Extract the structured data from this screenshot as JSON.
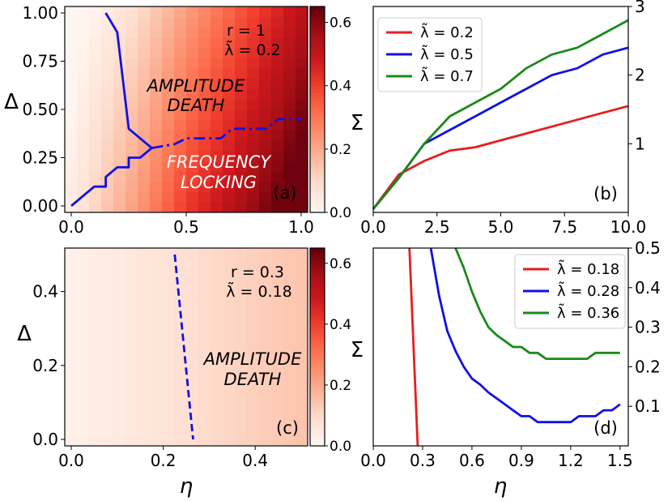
{
  "chart_data": [
    {
      "panel": "(a)",
      "type": "heatmap",
      "xlabel": "",
      "ylabel": "Δ",
      "xlim": [
        0,
        1
      ],
      "ylim": [
        0,
        1
      ],
      "xticks": [
        "0.0",
        "0.5",
        "1.0"
      ],
      "yticks": [
        "0.00",
        "0.25",
        "0.50",
        "0.75",
        "1.00"
      ],
      "grid_cells": 20,
      "colormap": "Reds",
      "colorbar": {
        "range": [
          0,
          0.65
        ],
        "ticks": [
          "0.0",
          "0.2",
          "0.4",
          "0.6"
        ]
      },
      "annotations": {
        "r_line": "r = 1",
        "lambda_line": "λ̃ = 0.2",
        "region1": [
          "AMPLITUDE",
          "DEATH"
        ],
        "region2": [
          "FREQUENCY",
          "LOCKING"
        ],
        "tag": "(a)"
      },
      "series": [
        {
          "style": "solid",
          "color": "#1010e6",
          "x": [
            0.15,
            0.2,
            0.25,
            0.35
          ],
          "y": [
            1.0,
            0.9,
            0.4,
            0.3
          ]
        },
        {
          "style": "solid",
          "color": "#1010e6",
          "x": [
            0,
            0.05,
            0.1,
            0.15,
            0.15,
            0.2,
            0.25,
            0.25,
            0.3,
            0.35,
            0.35
          ],
          "y": [
            0,
            0.05,
            0.1,
            0.1,
            0.15,
            0.2,
            0.2,
            0.25,
            0.25,
            0.3,
            0.3
          ]
        },
        {
          "style": "dashdot",
          "color": "#1010e6",
          "x": [
            0.35,
            0.45,
            0.5,
            0.55,
            0.6,
            0.65,
            0.7,
            0.75,
            0.8,
            0.85,
            0.9,
            0.95,
            1.0
          ],
          "y": [
            0.3,
            0.32,
            0.35,
            0.35,
            0.35,
            0.35,
            0.4,
            0.4,
            0.4,
            0.4,
            0.45,
            0.45,
            0.45
          ]
        }
      ]
    },
    {
      "panel": "(b)",
      "type": "line",
      "xlabel": "",
      "ylabel": "Σ",
      "xlim": [
        0,
        10
      ],
      "ylim": [
        0,
        3
      ],
      "xticks": [
        "0.0",
        "2.5",
        "5.0",
        "7.5",
        "10.0"
      ],
      "yticks": [
        "1",
        "2",
        "3"
      ],
      "legend": "top-left",
      "tag": "(b)",
      "series": [
        {
          "name": "λ̃ = 0.2",
          "color": "#e61e1e",
          "x": [
            0,
            1,
            2,
            3,
            4,
            5,
            6,
            7,
            8,
            9,
            10
          ],
          "y": [
            0.05,
            0.55,
            0.75,
            0.9,
            0.95,
            1.05,
            1.15,
            1.25,
            1.35,
            1.45,
            1.55
          ]
        },
        {
          "name": "λ̃ = 0.5",
          "color": "#1010e6",
          "x": [
            0,
            1,
            2,
            3,
            4,
            5,
            6,
            7,
            8,
            9,
            10
          ],
          "y": [
            0.05,
            0.5,
            1.0,
            1.2,
            1.4,
            1.6,
            1.8,
            2.0,
            2.1,
            2.3,
            2.4
          ]
        },
        {
          "name": "λ̃ = 0.7",
          "color": "#1a8a1a",
          "x": [
            0,
            1,
            2,
            3,
            4,
            5,
            6,
            7,
            8,
            9,
            10
          ],
          "y": [
            0.05,
            0.5,
            1.0,
            1.4,
            1.6,
            1.8,
            2.1,
            2.3,
            2.4,
            2.6,
            2.8
          ]
        }
      ]
    },
    {
      "panel": "(c)",
      "type": "heatmap",
      "xlabel": "η",
      "ylabel": "Δ",
      "xlim": [
        0,
        0.5
      ],
      "ylim": [
        0,
        0.5
      ],
      "xticks": [
        "0.0",
        "0.2",
        "0.4"
      ],
      "yticks": [
        "0.0",
        "0.2",
        "0.4"
      ],
      "grid_cells": 20,
      "colormap": "Reds",
      "colorbar": {
        "range": [
          0,
          0.65
        ],
        "ticks": [
          "0.0",
          "0.2",
          "0.4",
          "0.6"
        ]
      },
      "annotations": {
        "r_line": "r = 0.3",
        "lambda_line": "λ̃ = 0.18",
        "region1": [
          "AMPLITUDE",
          "DEATH"
        ],
        "tag": "(c)"
      },
      "series": [
        {
          "style": "dashed",
          "color": "#1010e6",
          "x": [
            0.225,
            0.265
          ],
          "y": [
            0.5,
            0.0
          ]
        }
      ]
    },
    {
      "panel": "(d)",
      "type": "line",
      "xlabel": "η",
      "ylabel": "Σ",
      "xlim": [
        0,
        1.55
      ],
      "ylim": [
        0,
        0.5
      ],
      "xticks": [
        "0.0",
        "0.3",
        "0.6",
        "0.9",
        "1.2",
        "1.5"
      ],
      "yticks": [
        "0.1",
        "0.2",
        "0.3",
        "0.4",
        "0.5"
      ],
      "legend": "top-right",
      "tag": "(d)",
      "series": [
        {
          "name": "λ̃ = 0.18",
          "color": "#e61e1e",
          "x": [
            0.22,
            0.27
          ],
          "y": [
            0.5,
            0.0
          ]
        },
        {
          "name": "λ̃ = 0.28",
          "color": "#1010e6",
          "x": [
            0.35,
            0.4,
            0.45,
            0.5,
            0.55,
            0.6,
            0.65,
            0.7,
            0.75,
            0.8,
            0.85,
            0.9,
            0.95,
            1.0,
            1.05,
            1.1,
            1.15,
            1.2,
            1.25,
            1.3,
            1.35,
            1.4,
            1.45,
            1.5
          ],
          "y": [
            0.5,
            0.38,
            0.29,
            0.24,
            0.2,
            0.17,
            0.155,
            0.135,
            0.12,
            0.105,
            0.09,
            0.075,
            0.075,
            0.06,
            0.06,
            0.06,
            0.06,
            0.06,
            0.075,
            0.075,
            0.075,
            0.09,
            0.09,
            0.105
          ]
        },
        {
          "name": "λ̃ = 0.36",
          "color": "#1a8a1a",
          "x": [
            0.5,
            0.55,
            0.6,
            0.65,
            0.7,
            0.75,
            0.8,
            0.85,
            0.9,
            0.95,
            1.0,
            1.05,
            1.1,
            1.15,
            1.2,
            1.25,
            1.3,
            1.35,
            1.4,
            1.45,
            1.5
          ],
          "y": [
            0.5,
            0.45,
            0.39,
            0.34,
            0.3,
            0.28,
            0.265,
            0.25,
            0.25,
            0.235,
            0.235,
            0.22,
            0.22,
            0.22,
            0.22,
            0.22,
            0.22,
            0.235,
            0.235,
            0.235,
            0.235
          ]
        }
      ]
    }
  ]
}
